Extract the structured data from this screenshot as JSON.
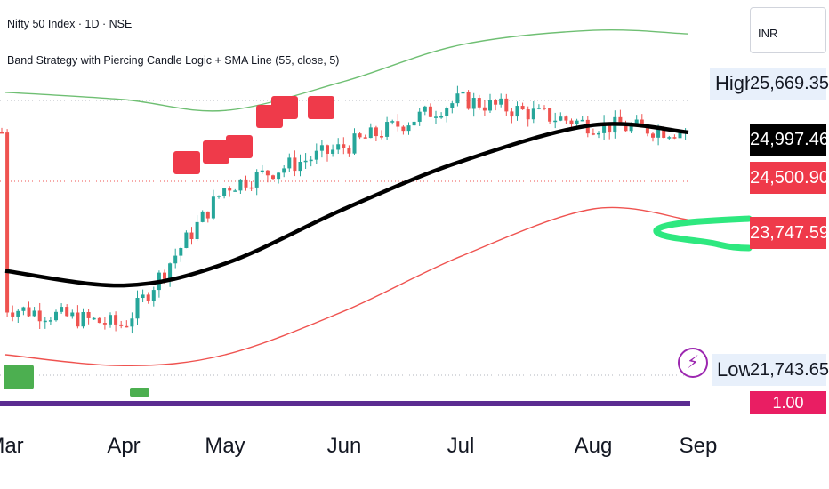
{
  "header": {
    "title": "Nifty 50 Index · 1D · NSE",
    "indicator": "Band Strategy with Piercing Candle Logic + SMA Line (55, close, 5)"
  },
  "currency": "INR",
  "price_scale": {
    "high_label": "High",
    "high_value": "25,669.35",
    "last_value": "24,997.46",
    "close_value": "24,500.90",
    "lower_band_value": "23,747.59",
    "low_label": "Low",
    "low_value": "21,743.65",
    "indicator_value": "1.00"
  },
  "time_axis": [
    "Mar",
    "Apr",
    "May",
    "Jun",
    "Jul",
    "Aug",
    "Sep"
  ],
  "colors": {
    "up": "#26a69a",
    "down": "#ef5350",
    "upper_band": "#6fbf73",
    "lower_band": "#ef5350",
    "sma": "#000000",
    "signal_sell": "#ef3a4a",
    "signal_buy": "#4caf50",
    "highlight": "#2ee87f",
    "indicator_line": "#5b2c91"
  },
  "chart_data": {
    "type": "line",
    "xlabel": "",
    "ylabel": "",
    "ylim": [
      21400,
      26400
    ],
    "x": [
      "Mar",
      "Apr",
      "May",
      "Jun",
      "Jul",
      "Aug",
      "Sep"
    ],
    "series": [
      {
        "values": [
          25500,
          25400,
          25250,
          25650,
          26150,
          26350,
          26300
        ]
      },
      {
        "values": [
          23050,
          22850,
          23150,
          23900,
          24550,
          25050,
          24950
        ]
      },
      {
        "values": [
          21900,
          21750,
          21900,
          22500,
          23250,
          23900,
          23750
        ]
      },
      {
        "values": [
          22550,
          22300,
          24200,
          24750,
          25400,
          25050,
          24950
        ]
      }
    ],
    "signals": [
      {
        "type": "BUY",
        "x": "Mar"
      },
      {
        "type": "BUY",
        "x": "Apr"
      },
      {
        "type": "SELL",
        "x": "Apr"
      },
      {
        "type": "SELL",
        "x": "May"
      },
      {
        "type": "SELL",
        "x": "May"
      },
      {
        "type": "SELL",
        "x": "Jun"
      }
    ]
  }
}
